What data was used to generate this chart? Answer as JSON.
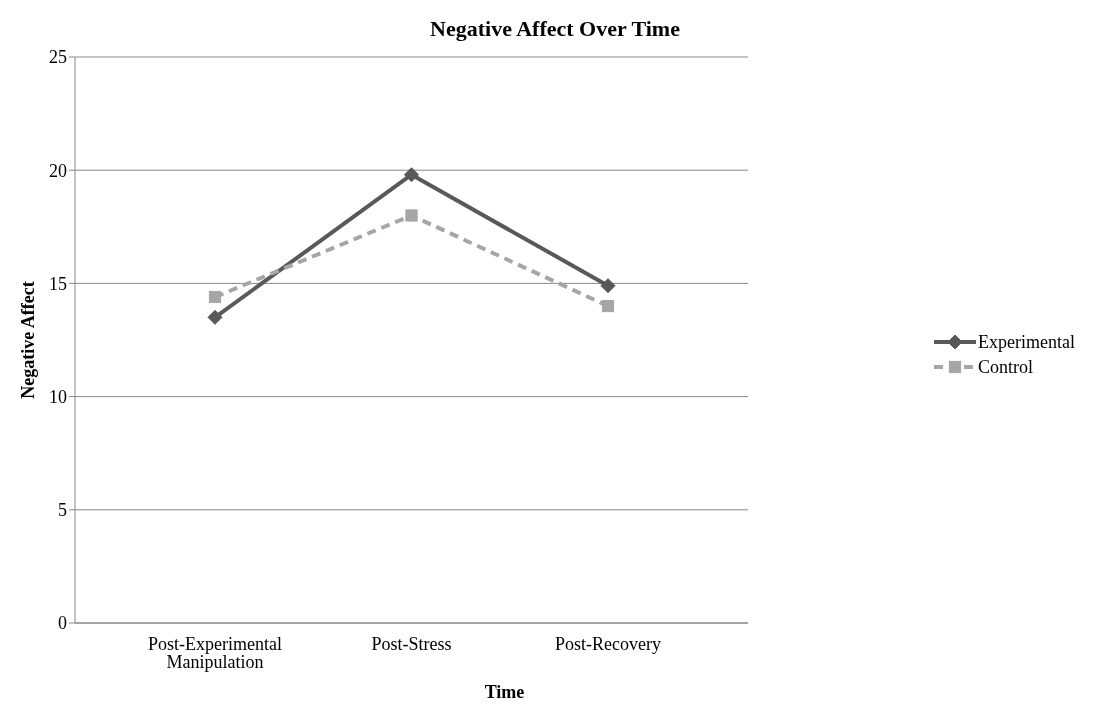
{
  "chart_data": {
    "type": "line",
    "title": "Negative Affect Over Time",
    "xlabel": "Time",
    "ylabel": "Negative Affect",
    "categories": [
      "Post-Experimental Manipulation",
      "Post-Stress",
      "Post-Recovery"
    ],
    "series": [
      {
        "name": "Experimental",
        "color": "#595959",
        "values": [
          13.5,
          19.8,
          14.9
        ],
        "marker": "diamond",
        "line_style": "solid"
      },
      {
        "name": "Control",
        "color": "#a6a6a6",
        "values": [
          14.4,
          18.0,
          14.0
        ],
        "marker": "square",
        "line_style": "dashed"
      }
    ],
    "ylim": [
      0,
      25
    ],
    "yticks": [
      0,
      5,
      10,
      15,
      20,
      25
    ],
    "grid": "y",
    "legend": "right"
  }
}
